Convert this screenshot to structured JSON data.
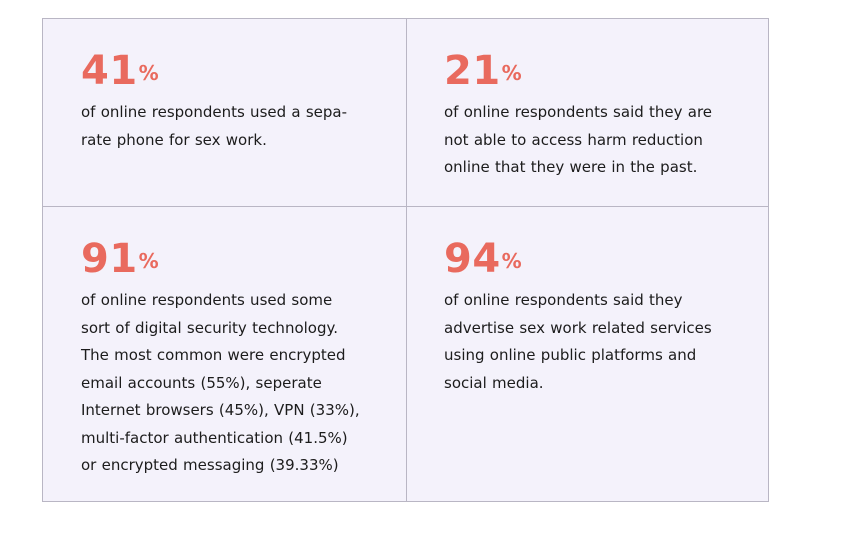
{
  "stats": [
    {
      "value": "41",
      "unit": "%",
      "lines": [
        "of online respondents used a sepa-",
        "rate phone for sex work."
      ]
    },
    {
      "value": "21",
      "unit": "%",
      "lines": [
        "of online respondents said they are",
        "not able to access harm reduction",
        "online that they were in the past."
      ]
    },
    {
      "value": "91",
      "unit": "%",
      "lines": [
        "of online respondents used some",
        "sort of digital security technology.",
        "The most common were encrypted",
        "email accounts (55%), seperate",
        "Internet browsers (45%), VPN (33%),",
        "multi-factor authentication (41.5%)",
        "or encrypted messaging (39.33%)"
      ]
    },
    {
      "value": "94",
      "unit": "%",
      "lines": [
        "of online respondents said they",
        "advertise sex work related services",
        "using online public platforms and",
        "social media."
      ]
    }
  ],
  "colors": {
    "accent": "#e96a5e",
    "panel_background": "#f4f2fb",
    "border": "#b9b6c4",
    "text": "#1c1c1c"
  }
}
